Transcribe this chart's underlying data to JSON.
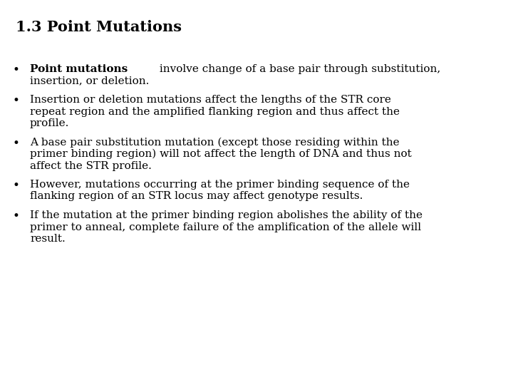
{
  "title": "1.3 Point Mutations",
  "background_color": "#ffffff",
  "title_color": "#000000",
  "text_color": "#000000",
  "title_fontsize": 15,
  "body_fontsize": 11,
  "bullet_points": [
    {
      "bold_part": "Point mutations",
      "lines": [
        " involve change of a base pair through substitution,",
        "insertion, or deletion."
      ]
    },
    {
      "bold_part": "",
      "lines": [
        "Insertion or deletion mutations affect the lengths of the STR core",
        "repeat region and the amplified flanking region and thus affect the",
        "profile."
      ]
    },
    {
      "bold_part": "",
      "lines": [
        "A base pair substitution mutation (except those residing within the",
        "primer binding region) will not affect the length of DNA and thus not",
        "affect the STR profile."
      ]
    },
    {
      "bold_part": "",
      "lines": [
        "However, mutations occurring at the primer binding sequence of the",
        "flanking region of an STR locus may affect genotype results."
      ]
    },
    {
      "bold_part": "",
      "lines": [
        "If the mutation at the primer binding region abolishes the ability of the",
        "primer to anneal, complete failure of the amplification of the allele will",
        "result."
      ]
    }
  ]
}
